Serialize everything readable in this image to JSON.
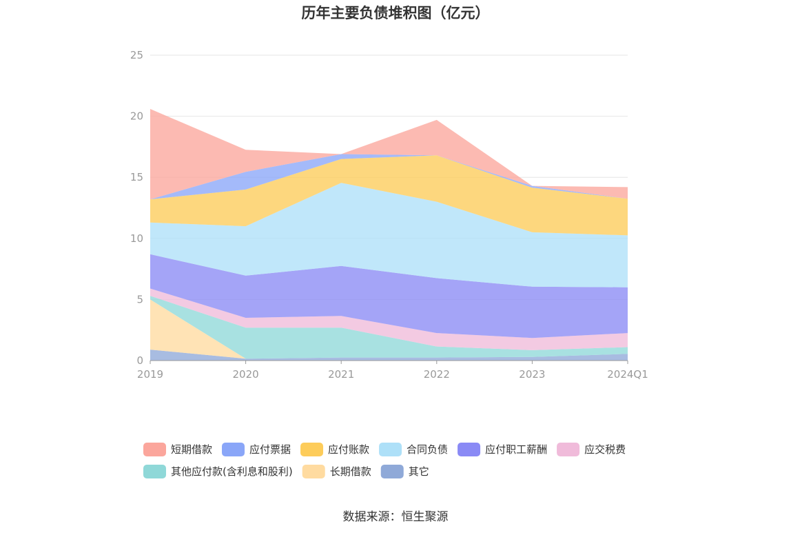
{
  "chart_data": {
    "type": "area",
    "stacked": true,
    "title": "历年主要负债堆积图（亿元）",
    "xlabel": "",
    "ylabel": "",
    "categories": [
      "2019",
      "2020",
      "2021",
      "2022",
      "2023",
      "2024Q1"
    ],
    "ylim": [
      0,
      25
    ],
    "yticks": [
      0,
      5,
      10,
      15,
      20,
      25
    ],
    "grid": true,
    "legend_position": "bottom",
    "series": [
      {
        "name": "其它",
        "color": "#8fa9d8",
        "values": [
          0.9,
          0.15,
          0.25,
          0.25,
          0.3,
          0.55
        ]
      },
      {
        "name": "长期借款",
        "color": "#ffdba0",
        "values": [
          4.1,
          0.0,
          0.0,
          0.0,
          0.0,
          0.0
        ]
      },
      {
        "name": "其他应付款(含利息和股利)",
        "color": "#8fd8d8",
        "values": [
          0.3,
          2.55,
          2.45,
          0.9,
          0.55,
          0.55
        ]
      },
      {
        "name": "应交税费",
        "color": "#f0bbda",
        "values": [
          0.6,
          0.8,
          0.95,
          1.1,
          1.0,
          1.15
        ]
      },
      {
        "name": "应付职工薪酬",
        "color": "#8a8af5",
        "values": [
          2.8,
          3.45,
          4.1,
          4.5,
          4.2,
          3.75
        ]
      },
      {
        "name": "合同负债",
        "color": "#aee0f8",
        "values": [
          2.6,
          4.05,
          6.8,
          6.25,
          4.45,
          4.25
        ]
      },
      {
        "name": "应付账款",
        "color": "#fdcc5a",
        "values": [
          1.9,
          3.0,
          1.95,
          3.8,
          3.65,
          3.0
        ]
      },
      {
        "name": "应付票据",
        "color": "#8aa6f8",
        "values": [
          0.0,
          1.45,
          0.4,
          0.0,
          0.15,
          0.0
        ]
      },
      {
        "name": "短期借款",
        "color": "#fba69c",
        "values": [
          7.4,
          1.8,
          0.0,
          2.9,
          0.0,
          0.95
        ]
      }
    ],
    "legend_order": [
      "短期借款",
      "应付票据",
      "应付账款",
      "合同负债",
      "应付职工薪酬",
      "应交税费",
      "其他应付款(含利息和股利)",
      "长期借款",
      "其它"
    ]
  },
  "source": "数据来源：恒生聚源"
}
